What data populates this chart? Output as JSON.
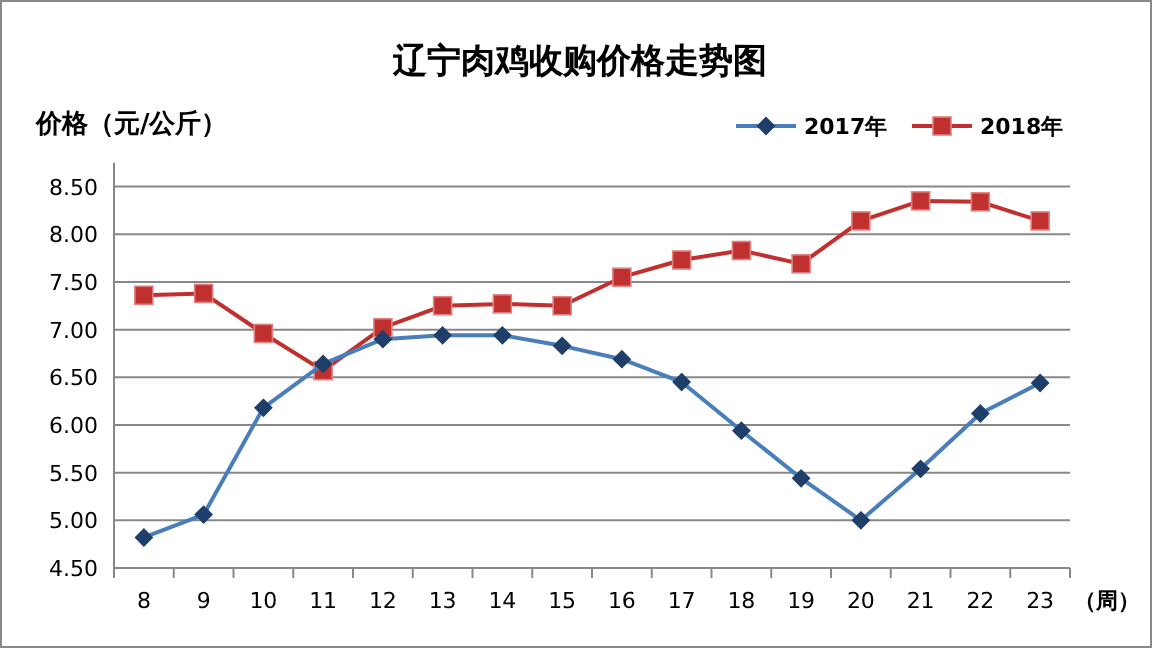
{
  "chart_data": {
    "type": "line",
    "title": "辽宁肉鸡收购价格走势图",
    "ylabel": "价格（元/公斤）",
    "xlabel": "（周）",
    "categories": [
      "8",
      "9",
      "10",
      "11",
      "12",
      "13",
      "14",
      "15",
      "16",
      "17",
      "18",
      "19",
      "20",
      "21",
      "22",
      "23"
    ],
    "series": [
      {
        "name": "2017年",
        "color": "#4a7ebb",
        "marker": "diamond",
        "values": [
          4.82,
          5.06,
          6.18,
          6.64,
          6.9,
          6.94,
          6.94,
          6.83,
          6.69,
          6.45,
          5.94,
          5.44,
          5.0,
          5.54,
          6.12,
          6.44
        ]
      },
      {
        "name": "2018年",
        "color": "#c0302e",
        "marker": "square",
        "values": [
          7.36,
          7.38,
          6.96,
          6.57,
          7.02,
          7.25,
          7.27,
          7.25,
          7.55,
          7.73,
          7.83,
          7.69,
          8.14,
          8.35,
          8.34,
          8.14
        ]
      }
    ],
    "ylim": [
      4.5,
      8.75
    ],
    "yticks": [
      {
        "value": 4.5,
        "label": "4.50"
      },
      {
        "value": 5,
        "label": "5.00"
      },
      {
        "value": 5.5,
        "label": "5.50"
      },
      {
        "value": 6,
        "label": "6.00"
      },
      {
        "value": 6.5,
        "label": "6.50"
      },
      {
        "value": 7,
        "label": "7.00"
      },
      {
        "value": 7.5,
        "label": "7.50"
      },
      {
        "value": 8,
        "label": "8.00"
      },
      {
        "value": 8.5,
        "label": "8.50"
      }
    ],
    "grid": "y",
    "legend": "top right",
    "line_style": "solid"
  }
}
